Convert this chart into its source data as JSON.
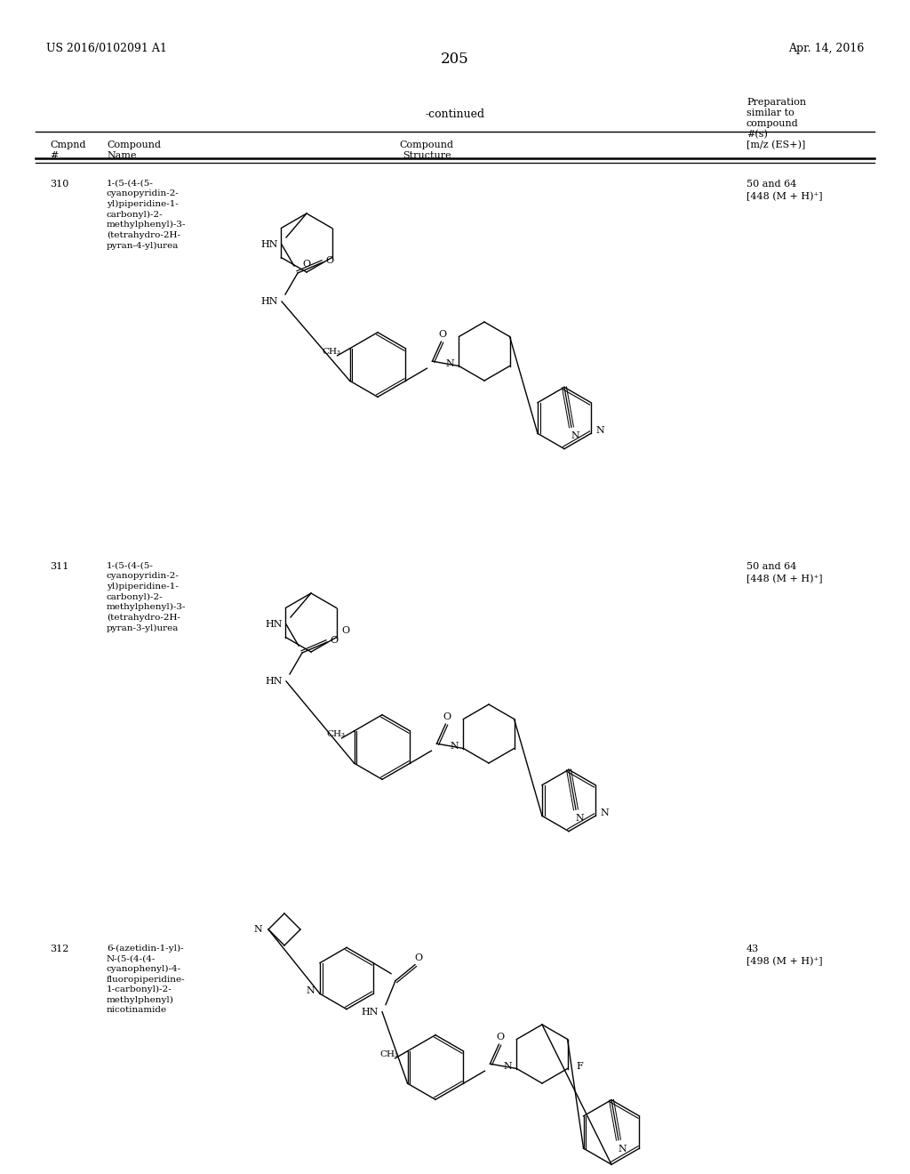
{
  "page_left_header": "US 2016/0102091 A1",
  "page_right_header": "Apr. 14, 2016",
  "page_number": "205",
  "continued_text": "-continued",
  "table_headers": {
    "col1_line1": "Cmpnd",
    "col1_line2": "#",
    "col2_line1": "Compound",
    "col2_line2": "Name",
    "col3_line1": "Compound",
    "col3_line2": "Structure",
    "col4_line1": "Preparation",
    "col4_line2": "similar to",
    "col4_line3": "compound",
    "col4_line4": "#(s)",
    "col4_line5": "[m/z (ES+)]"
  },
  "compounds": [
    {
      "number": "310",
      "name": "1-(5-(4-(5-\ncyanopyridin-2-\nyl)piperidine-1-\ncarbonyl)-2-\nmethylphenyl)-3-\n(tetrahydro-2H-\npyran-4-yl)urea",
      "prep": "50 and 64\n[448 (M + H)⁺]"
    },
    {
      "number": "311",
      "name": "1-(5-(4-(5-\ncyanopyridin-2-\nyl)piperidine-1-\ncarbonyl)-2-\nmethylphenyl)-3-\n(tetrahydro-2H-\npyran-3-yl)urea",
      "prep": "50 and 64\n[448 (M + H)⁺]"
    },
    {
      "number": "312",
      "name": "6-(azetidin-1-yl)-\nN-(5-(4-(4-\ncyanophenyl)-4-\nfluoropiperidine-\n1-carbonyl)-2-\nmethylphenyl)\nnicotinamide",
      "prep": "43\n[498 (M + H)⁺]"
    }
  ],
  "bg_color": "#ffffff",
  "text_color": "#000000",
  "font_size_body": 8,
  "font_size_page_num": 12,
  "font_size_top": 9
}
